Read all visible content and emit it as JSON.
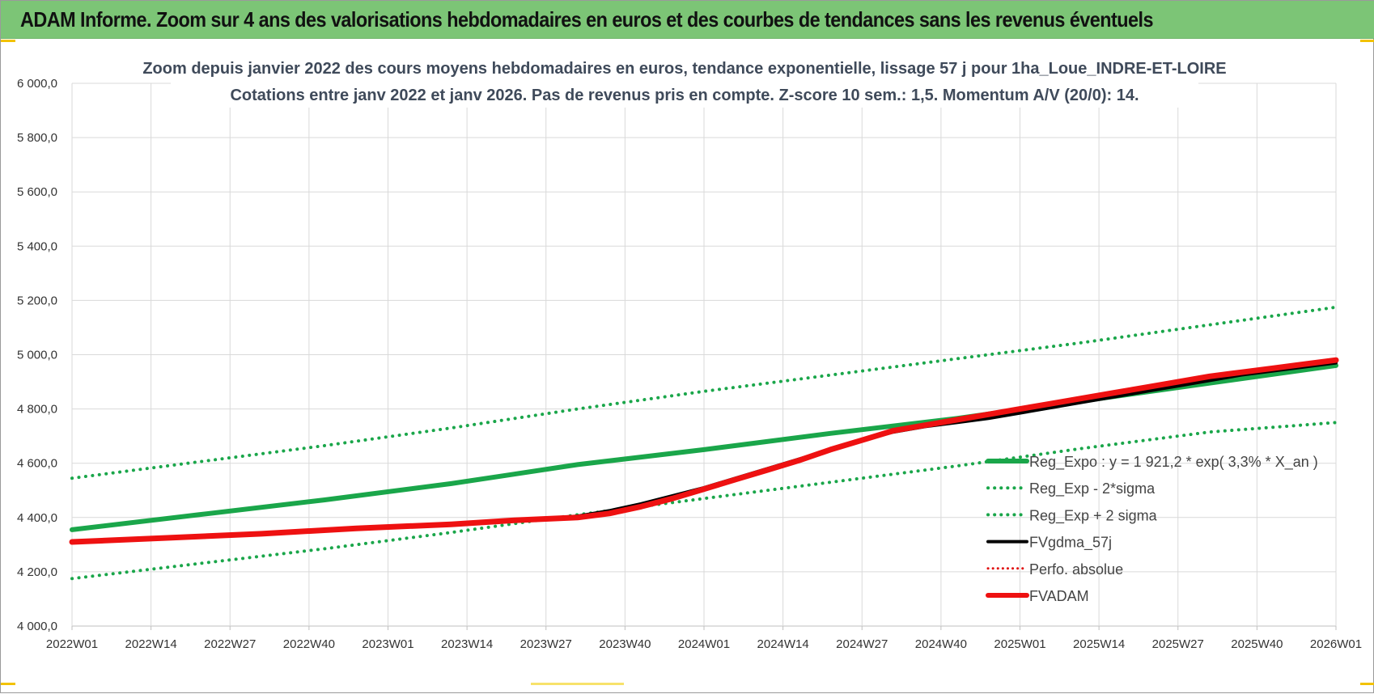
{
  "banner": {
    "title": "ADAM Informe. Zoom sur 4 ans des valorisations hebdomadaires en euros et des courbes de tendances sans les revenus éventuels"
  },
  "chart_data": {
    "type": "line",
    "title": "Zoom depuis janvier 2022 des cours moyens hebdomadaires en euros, tendance exponentielle, lissage 57 j pour 1ha_Loue_INDRE-ET-LOIRE",
    "subtitle": "Cotations entre janv 2022 et janv 2026. Pas de revenus pris en compte. Z-score 10 sem.: 1,5. Momentum A/V (20/0): 14.",
    "xlabel": "",
    "ylabel": "",
    "ylim": [
      4000,
      6000
    ],
    "y_ticks": [
      "6 000,0",
      "5 800,0",
      "5 600,0",
      "5 400,0",
      "5 200,0",
      "5 000,0",
      "4 800,0",
      "4 600,0",
      "4 400,0",
      "4 200,0",
      "4 000,0"
    ],
    "y_tick_values": [
      6000,
      5800,
      5600,
      5400,
      5200,
      5000,
      4800,
      4600,
      4400,
      4200,
      4000
    ],
    "x_ticks": [
      "2022W01",
      "2022W14",
      "2022W27",
      "2022W40",
      "2023W01",
      "2023W14",
      "2023W27",
      "2023W40",
      "2024W01",
      "2024W14",
      "2024W27",
      "2024W40",
      "2025W01",
      "2025W14",
      "2025W27",
      "2025W40",
      "2026W01"
    ],
    "grid": true,
    "legend_position": "right",
    "series": [
      {
        "name": "Reg_Expo : y = 1 921,2 * exp( 3,3% * X_an )",
        "color": "#1aa64a",
        "style": "solid",
        "width": 6,
        "points": [
          [
            0,
            4355
          ],
          [
            4,
            4410
          ],
          [
            8,
            4465
          ],
          [
            12,
            4525
          ],
          [
            16,
            4595
          ],
          [
            20,
            4650
          ],
          [
            24,
            4710
          ],
          [
            28,
            4765
          ],
          [
            32,
            4830
          ],
          [
            36,
            4895
          ],
          [
            40,
            4960
          ]
        ]
      },
      {
        "name": "Reg_Exp - 2*sigma",
        "color": "#1aa64a",
        "style": "dotted",
        "width": 4,
        "points": [
          [
            0,
            4175
          ],
          [
            4,
            4230
          ],
          [
            8,
            4285
          ],
          [
            12,
            4345
          ],
          [
            16,
            4410
          ],
          [
            20,
            4470
          ],
          [
            24,
            4530
          ],
          [
            28,
            4590
          ],
          [
            32,
            4655
          ],
          [
            36,
            4715
          ],
          [
            40,
            4750
          ]
        ]
      },
      {
        "name": "Reg_Exp + 2 sigma",
        "color": "#1aa64a",
        "style": "dotted",
        "width": 4,
        "points": [
          [
            0,
            4545
          ],
          [
            4,
            4605
          ],
          [
            8,
            4665
          ],
          [
            12,
            4730
          ],
          [
            16,
            4800
          ],
          [
            20,
            4865
          ],
          [
            24,
            4925
          ],
          [
            28,
            4985
          ],
          [
            32,
            5045
          ],
          [
            36,
            5110
          ],
          [
            40,
            5175
          ]
        ]
      },
      {
        "name": "FVgdma_57j",
        "color": "#000000",
        "style": "solid",
        "width": 4,
        "points": [
          [
            0,
            4310
          ],
          [
            3,
            4325
          ],
          [
            6,
            4340
          ],
          [
            9,
            4360
          ],
          [
            12,
            4375
          ],
          [
            14,
            4390
          ],
          [
            16,
            4405
          ],
          [
            17,
            4425
          ],
          [
            18,
            4450
          ],
          [
            19,
            4480
          ],
          [
            20,
            4510
          ],
          [
            21,
            4545
          ],
          [
            22,
            4580
          ],
          [
            23,
            4615
          ],
          [
            24,
            4650
          ],
          [
            25,
            4685
          ],
          [
            26,
            4715
          ],
          [
            27,
            4735
          ],
          [
            28,
            4750
          ],
          [
            29,
            4765
          ],
          [
            30,
            4785
          ],
          [
            31,
            4805
          ],
          [
            32,
            4825
          ],
          [
            33,
            4845
          ],
          [
            34,
            4865
          ],
          [
            35,
            4885
          ],
          [
            36,
            4905
          ],
          [
            37,
            4925
          ],
          [
            38,
            4940
          ],
          [
            39,
            4955
          ],
          [
            40,
            4970
          ]
        ]
      },
      {
        "name": "Perfo. absolue",
        "color": "#e01010",
        "style": "dotted",
        "width": 3,
        "points": []
      },
      {
        "name": "FVADAM",
        "color": "#ee1111",
        "style": "solid",
        "width": 7,
        "points": [
          [
            0,
            4310
          ],
          [
            3,
            4325
          ],
          [
            6,
            4340
          ],
          [
            9,
            4360
          ],
          [
            12,
            4375
          ],
          [
            14,
            4390
          ],
          [
            15,
            4395
          ],
          [
            16,
            4400
          ],
          [
            17,
            4415
          ],
          [
            18,
            4440
          ],
          [
            19,
            4470
          ],
          [
            20,
            4505
          ],
          [
            21,
            4540
          ],
          [
            22,
            4575
          ],
          [
            23,
            4610
          ],
          [
            24,
            4650
          ],
          [
            25,
            4685
          ],
          [
            26,
            4720
          ],
          [
            27,
            4740
          ],
          [
            28,
            4760
          ],
          [
            29,
            4780
          ],
          [
            30,
            4800
          ],
          [
            31,
            4820
          ],
          [
            32,
            4840
          ],
          [
            33,
            4860
          ],
          [
            34,
            4880
          ],
          [
            35,
            4900
          ],
          [
            36,
            4920
          ],
          [
            37,
            4935
          ],
          [
            38,
            4950
          ],
          [
            39,
            4965
          ],
          [
            40,
            4980
          ]
        ]
      }
    ]
  }
}
